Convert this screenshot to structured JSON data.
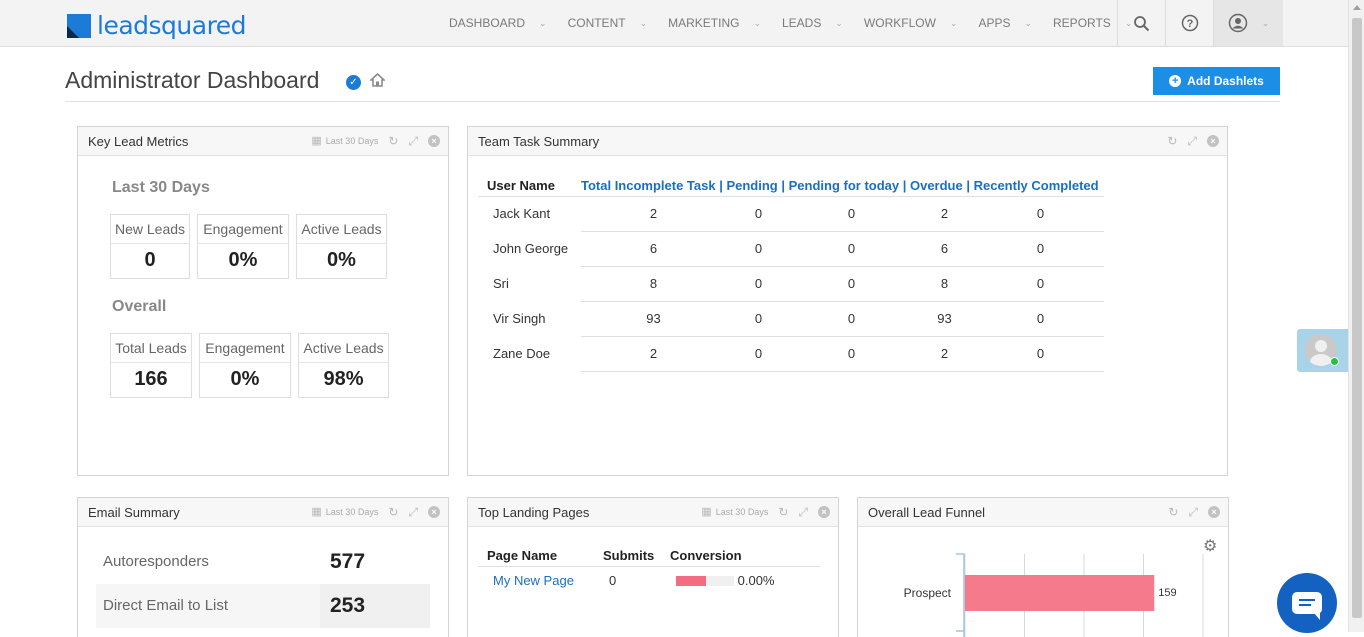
{
  "brand": {
    "logo_text": "leadsquared"
  },
  "nav": {
    "items": [
      {
        "label": "DASHBOARD"
      },
      {
        "label": "CONTENT"
      },
      {
        "label": "MARKETING"
      },
      {
        "label": "LEADS"
      },
      {
        "label": "WORKFLOW"
      },
      {
        "label": "APPS"
      },
      {
        "label": "REPORTS"
      }
    ],
    "search_icon": "search-icon",
    "help_icon": "help-icon",
    "user_icon": "user-account-icon"
  },
  "page": {
    "title": "Administrator Dashboard",
    "add_button": "Add Dashlets"
  },
  "key_lead_metrics": {
    "title": "Key Lead Metrics",
    "range": "Last 30 Days",
    "period_heading": "Last 30 Days",
    "period": [
      {
        "label": "New Leads",
        "value": "0"
      },
      {
        "label": "Engagement",
        "value": "0%"
      },
      {
        "label": "Active Leads",
        "value": "0%"
      }
    ],
    "overall_heading": "Overall",
    "overall": [
      {
        "label": "Total Leads",
        "value": "166"
      },
      {
        "label": "Engagement",
        "value": "0%"
      },
      {
        "label": "Active Leads",
        "value": "98%"
      }
    ]
  },
  "team_task_summary": {
    "title": "Team Task Summary",
    "columns": [
      "User Name",
      "Total Incomplete Task | ",
      "Pending | ",
      "Pending for today | ",
      "Overdue | ",
      "Recently Completed"
    ],
    "rows": [
      {
        "name": "Jack Kant",
        "total": "2",
        "pending": "0",
        "today": "0",
        "overdue": "2",
        "completed": "0"
      },
      {
        "name": "John George",
        "total": "6",
        "pending": "0",
        "today": "0",
        "overdue": "6",
        "completed": "0"
      },
      {
        "name": "Sri",
        "total": "8",
        "pending": "0",
        "today": "0",
        "overdue": "8",
        "completed": "0"
      },
      {
        "name": "Vir Singh",
        "total": "93",
        "pending": "0",
        "today": "0",
        "overdue": "93",
        "completed": "0"
      },
      {
        "name": "Zane Doe",
        "total": "2",
        "pending": "0",
        "today": "0",
        "overdue": "2",
        "completed": "0"
      }
    ]
  },
  "email_summary": {
    "title": "Email Summary",
    "range": "Last 30 Days",
    "rows": [
      {
        "label": "Autoresponders",
        "value": "577"
      },
      {
        "label": "Direct Email to List",
        "value": "253"
      }
    ]
  },
  "top_landing_pages": {
    "title": "Top Landing Pages",
    "range": "Last 30 Days",
    "columns": [
      "Page Name",
      "Submits",
      "Conversion"
    ],
    "rows": [
      {
        "name": "My New Page",
        "submits": "0",
        "conversion": "0.00%"
      }
    ]
  },
  "lead_funnel": {
    "title": "Overall Lead Funnel",
    "chart_data": {
      "type": "bar",
      "categories": [
        "Prospect"
      ],
      "values": [
        159
      ],
      "bar_color": "#f47a8c"
    }
  },
  "colors": {
    "accent": "#1d8ee6",
    "link": "#1a6fc0",
    "online": "#26c13c"
  }
}
